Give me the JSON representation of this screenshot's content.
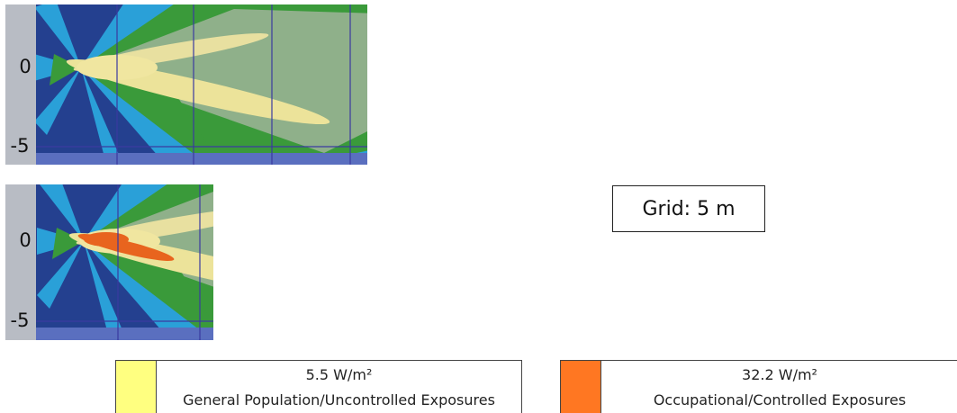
{
  "panels": [
    {
      "axis_labels": [
        "0",
        "-5"
      ]
    },
    {
      "axis_labels": [
        "0",
        "-5"
      ]
    }
  ],
  "grid_note": "Grid: 5 m",
  "legend": [
    {
      "value": "5.5 W/m²",
      "label": "General Population/Uncontrolled Exposures",
      "color": "#ffff80"
    },
    {
      "value": "32.2 W/m²",
      "label": "Occupational/Controlled Exposures",
      "color": "#ff7722"
    }
  ]
}
